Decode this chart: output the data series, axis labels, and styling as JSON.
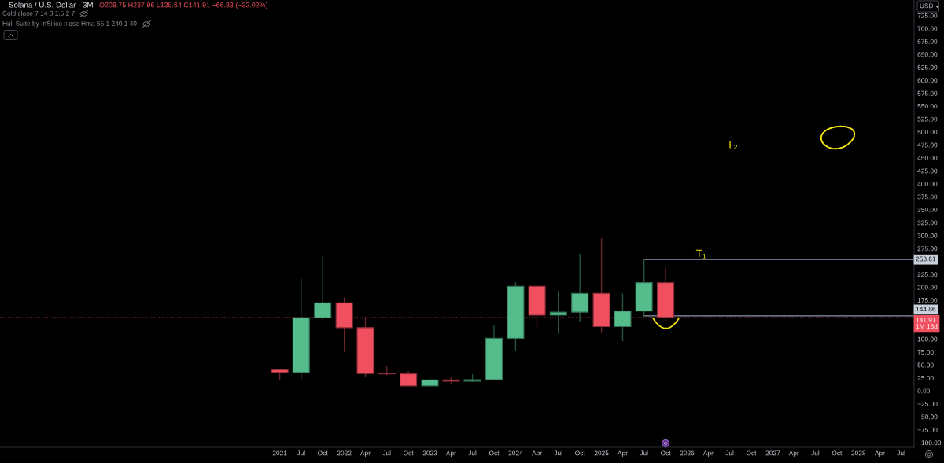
{
  "chart_data": {
    "type": "candlestick",
    "title": "Solana / U.S. Dollar · 3M",
    "subtitle": "O208.75 H237.96 L135.64 C141.91 −66.83 (−32.02%)",
    "ylabel": "USD",
    "x": [
      "2021-04",
      "2021-07",
      "2021-10",
      "2022-01",
      "2022-04",
      "2022-07",
      "2022-10",
      "2023-01",
      "2023-04",
      "2023-07",
      "2023-10",
      "2024-01",
      "2024-04",
      "2024-07",
      "2024-10",
      "2025-01",
      "2025-04",
      "2025-07",
      "2025-10"
    ],
    "ohlc": [
      [
        40.5,
        41,
        21,
        35.4
      ],
      [
        35.4,
        217,
        22,
        141
      ],
      [
        141,
        260,
        137,
        170
      ],
      [
        170,
        180,
        75,
        122
      ],
      [
        122,
        142,
        26,
        33.4
      ],
      [
        33.4,
        48.6,
        30.4,
        32.8
      ],
      [
        32.8,
        38,
        9.1,
        9.6
      ],
      [
        9.6,
        27.3,
        9.6,
        21.3
      ],
      [
        21.3,
        25.8,
        14.1,
        18.7
      ],
      [
        18.7,
        32.4,
        17,
        21.5
      ],
      [
        21.5,
        126,
        20.8,
        101.5
      ],
      [
        101.5,
        209.5,
        78,
        202
      ],
      [
        202,
        204,
        119,
        146
      ],
      [
        146,
        193,
        110,
        152
      ],
      [
        152,
        265,
        133,
        188
      ],
      [
        188,
        295,
        113,
        124
      ],
      [
        124,
        188,
        95.6,
        154
      ],
      [
        154,
        254,
        145,
        209
      ],
      [
        208.75,
        237.96,
        135.64,
        141.91
      ]
    ],
    "colors": [
      "#f04f5f",
      "#55bd8c",
      "#55bd8c",
      "#f04f5f",
      "#f04f5f",
      "#f04f5f",
      "#f04f5f",
      "#55bd8c",
      "#f04f5f",
      "#55bd8c",
      "#55bd8c",
      "#55bd8c",
      "#f04f5f",
      "#55bd8c",
      "#55bd8c",
      "#f04f5f",
      "#55bd8c",
      "#55bd8c",
      "#f04f5f"
    ],
    "series": [
      {
        "type": "line",
        "x": [
          "2025-07",
          "2028-08-25"
        ],
        "values": [
          253.61,
          253.61
        ],
        "color": "#8a96ab",
        "value_labels": [
          null,
          "253.61"
        ]
      },
      {
        "type": "line",
        "x": [
          "2025-07",
          "2028-08-25"
        ],
        "values": [
          144.86,
          144.86
        ],
        "color": "#8a96ab",
        "value_labels": [
          null,
          "144.86"
        ]
      }
    ],
    "ref_lines": [
      {
        "axis": "y",
        "value": 141.91,
        "label": "141.91\n1M 18d",
        "color": "#f04f5f",
        "line_style": "dotted"
      }
    ],
    "annotations": [
      "Cold close 7 14 3 1.5 2 7",
      "Hull Suite by InSilico close Hma 55 1 240 1 40",
      "T₂",
      {
        "text": "T₁",
        "x": "2026-03",
        "y": 253.61
      }
    ],
    "xlim": [
      "2017-12-26",
      "2028-08-25"
    ],
    "ylim": [
      -109,
      755
    ],
    "xticks": [
      {
        "value": "2021-04",
        "label": "2021"
      },
      {
        "value": "2021-07",
        "label": "Jul"
      },
      {
        "value": "2021-10",
        "label": "Oct"
      },
      {
        "value": "2022-01",
        "label": "2022"
      },
      {
        "value": "2022-04",
        "label": "Apr"
      },
      {
        "value": "2022-07",
        "label": "Jul"
      },
      {
        "value": "2022-10",
        "label": "Oct"
      },
      {
        "value": "2023-01",
        "label": "2023"
      },
      {
        "value": "2023-04",
        "label": "Apr"
      },
      {
        "value": "2023-07",
        "label": "Jul"
      },
      {
        "value": "2023-10",
        "label": "Oct"
      },
      {
        "value": "2024-01",
        "label": "2024"
      },
      {
        "value": "2024-04",
        "label": "Apr"
      },
      {
        "value": "2024-07",
        "label": "Jul"
      },
      {
        "value": "2024-10",
        "label": "Oct"
      },
      {
        "value": "2025-01",
        "label": "2025"
      },
      {
        "value": "2025-04",
        "label": "Apr"
      },
      {
        "value": "2025-07",
        "label": "Jul"
      },
      {
        "value": "2025-10",
        "label": "Oct"
      },
      {
        "value": "2026-01",
        "label": "2026"
      },
      {
        "value": "2026-04",
        "label": "Apr"
      },
      {
        "value": "2026-07",
        "label": "Jul"
      },
      {
        "value": "2026-10",
        "label": "Oct"
      },
      {
        "value": "2027-01",
        "label": "2027"
      },
      {
        "value": "2027-04",
        "label": "Apr"
      },
      {
        "value": "2027-07",
        "label": "Jul"
      },
      {
        "value": "2027-10",
        "label": "Oct"
      },
      {
        "value": "2028-01",
        "label": "2028"
      },
      {
        "value": "2028-04",
        "label": "Apr"
      },
      {
        "value": "2028-07",
        "label": "Jul"
      }
    ],
    "yticks": [
      {
        "value": -100,
        "label": "−100.00"
      },
      {
        "value": -75,
        "label": "−75.00"
      },
      {
        "value": -50,
        "label": "−50.00"
      },
      {
        "value": -25,
        "label": "−25.00"
      },
      {
        "value": 0,
        "label": "0.00"
      },
      {
        "value": 25,
        "label": "25.00"
      },
      {
        "value": 50,
        "label": "50.00"
      },
      {
        "value": 75,
        "label": "75.00"
      },
      {
        "value": 100,
        "label": "100.00"
      },
      {
        "value": 175,
        "label": "175.00"
      },
      {
        "value": 200,
        "label": "200.00"
      },
      {
        "value": 225,
        "label": "225.00"
      },
      {
        "value": 275,
        "label": "275.00"
      },
      {
        "value": 300,
        "label": "300.00"
      },
      {
        "value": 325,
        "label": "325.00"
      },
      {
        "value": 350,
        "label": "350.00"
      },
      {
        "value": 375,
        "label": "375.00"
      },
      {
        "value": 400,
        "label": "400.00"
      },
      {
        "value": 425,
        "label": "425.00"
      },
      {
        "value": 450,
        "label": "450.00"
      },
      {
        "value": 475,
        "label": "475.00"
      },
      {
        "value": 500,
        "label": "500.00"
      },
      {
        "value": 525,
        "label": "525.00"
      },
      {
        "value": 550,
        "label": "550.00"
      },
      {
        "value": 575,
        "label": "575.00"
      },
      {
        "value": 600,
        "label": "600.00"
      },
      {
        "value": 625,
        "label": "625.00"
      },
      {
        "value": 650,
        "label": "650.00"
      },
      {
        "value": 675,
        "label": "675.00"
      },
      {
        "value": 700,
        "label": "700.00"
      },
      {
        "value": 725,
        "label": "725.00"
      }
    ]
  }
}
